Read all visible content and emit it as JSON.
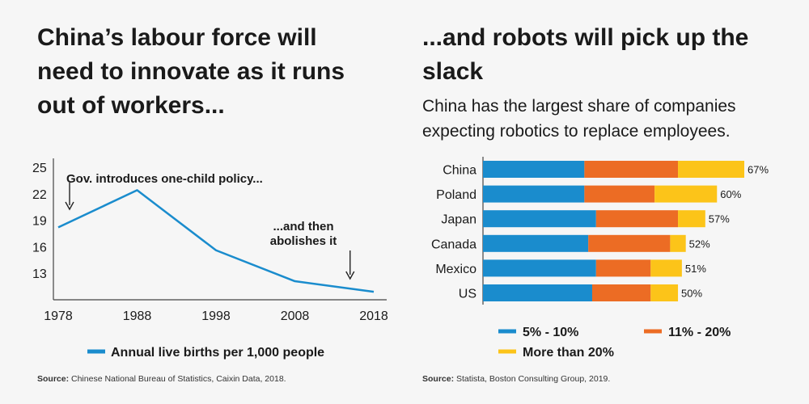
{
  "left": {
    "title": "China’s labour force will need to innovate as it runs out of workers...",
    "source_label": "Source:",
    "source_text": " Chinese National Bureau of Statistics, Caixin Data, 2018."
  },
  "right": {
    "title": "...and robots will pick up the slack",
    "subtitle": "China has the largest share of companies expecting robotics to replace employees.",
    "source_label": "Source:",
    "source_text": " Statista, Boston Consulting Group, 2019."
  },
  "colors": {
    "line": "#1a8ccd",
    "seg1": "#1a8ccd",
    "seg2": "#ec6c24",
    "seg3": "#fcc419",
    "axis": "#444444",
    "text": "#1a1a1a"
  },
  "chart_data": [
    {
      "type": "line",
      "title": "",
      "xlabel": "",
      "ylabel": "",
      "x": [
        1978,
        1988,
        1998,
        2008,
        2018
      ],
      "xlim": [
        1978,
        2018
      ],
      "ylim": [
        10,
        26
      ],
      "x_ticks": [
        "1978",
        "1988",
        "1998",
        "2008",
        "2018"
      ],
      "y_ticks": [
        13,
        16,
        19,
        22,
        25
      ],
      "series": [
        {
          "name": "Annual live births per 1,000 people",
          "values": [
            18.2,
            22.4,
            15.6,
            12.1,
            10.9
          ]
        }
      ],
      "legend_position": "bottom",
      "grid": false,
      "annotations": [
        {
          "text": "Gov. introduces one-child policy...",
          "x": 1978
        },
        {
          "text": "...and then abolishes it",
          "x": 2015
        }
      ]
    },
    {
      "type": "bar",
      "orientation": "horizontal",
      "stacked": true,
      "categories": [
        "China",
        "Poland",
        "Japan",
        "Canada",
        "Mexico",
        "US"
      ],
      "series": [
        {
          "name": "5% - 10%",
          "values": [
            26,
            26,
            29,
            27,
            29,
            28
          ]
        },
        {
          "name": "11% - 20%",
          "values": [
            24,
            18,
            21,
            21,
            14,
            15
          ]
        },
        {
          "name": "More than 20%",
          "values": [
            17,
            16,
            7,
            4,
            8,
            7
          ]
        }
      ],
      "totals": [
        "67%",
        "60%",
        "57%",
        "52%",
        "51%",
        "50%"
      ],
      "xlim": [
        0,
        67
      ],
      "legend_position": "bottom",
      "grid": false
    }
  ]
}
